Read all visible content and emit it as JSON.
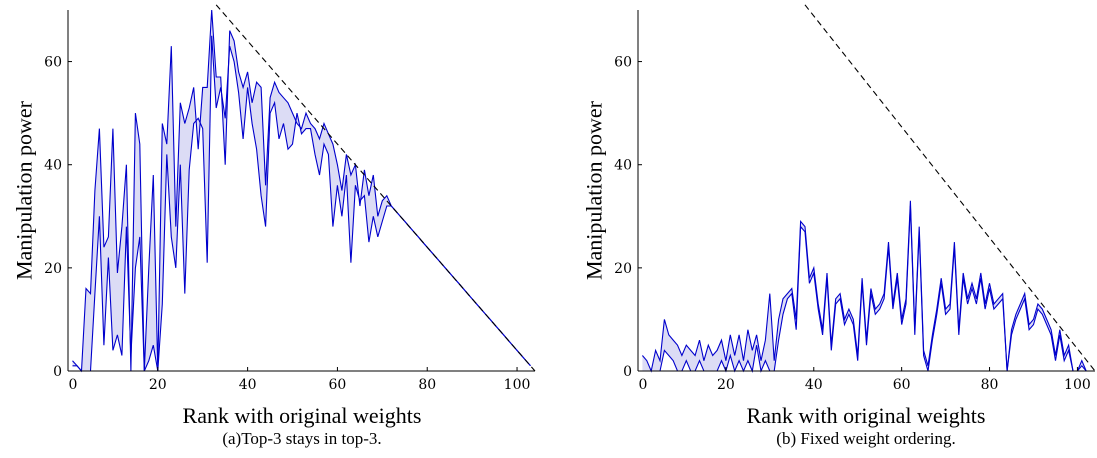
{
  "chart_data": [
    {
      "type": "area",
      "caption": "(a)Top-3 stays in top-3.",
      "xlabel": "Rank with original weights",
      "ylabel": "Manipulation power",
      "xlim": [
        0,
        104
      ],
      "ylim": [
        0,
        70
      ],
      "xticks": [
        0,
        20,
        40,
        60,
        80,
        100
      ],
      "yticks": [
        0,
        20,
        40,
        60
      ],
      "grid": false,
      "colors": {
        "band": "#0000cc",
        "fill": "#dcdcf5",
        "bound": "#000000"
      },
      "x": [
        1,
        2,
        3,
        4,
        5,
        6,
        7,
        8,
        9,
        10,
        11,
        12,
        13,
        14,
        15,
        16,
        17,
        18,
        19,
        20,
        21,
        22,
        23,
        24,
        25,
        26,
        27,
        28,
        29,
        30,
        31,
        32,
        33,
        34,
        35,
        36,
        37,
        38,
        39,
        40,
        41,
        42,
        43,
        44,
        45,
        46,
        47,
        48,
        49,
        50,
        51,
        52,
        53,
        54,
        55,
        56,
        57,
        58,
        59,
        60,
        61,
        62,
        63,
        64,
        65,
        66,
        67,
        68,
        69,
        70,
        71,
        72,
        73,
        74,
        75,
        76,
        77,
        78,
        79,
        80,
        81,
        82,
        83,
        84,
        85,
        86,
        87,
        88,
        89,
        90,
        91,
        92,
        93,
        94,
        95,
        96,
        97,
        98,
        99,
        100,
        101,
        102,
        103
      ],
      "series": [
        {
          "role": "upper",
          "values": [
            2,
            1,
            0,
            16,
            15,
            35,
            47,
            24,
            26,
            47,
            19,
            28,
            40,
            0,
            50,
            44,
            0,
            20,
            38,
            0,
            48,
            44,
            63,
            28,
            52,
            48,
            51,
            55,
            43,
            55,
            55,
            70,
            57,
            57,
            40,
            66,
            64,
            58,
            55,
            58,
            52,
            56,
            55,
            36,
            53,
            56,
            54,
            53,
            52,
            50,
            48,
            47,
            50,
            48,
            47,
            45,
            48,
            46,
            44,
            40,
            35,
            42,
            38,
            40,
            32,
            39,
            34,
            38,
            30,
            33,
            34,
            32,
            31,
            30,
            29,
            28,
            27,
            26,
            25,
            24,
            23,
            22,
            21,
            20,
            19,
            18,
            17,
            16,
            15,
            14,
            13,
            12,
            11,
            10,
            9,
            8,
            7,
            6,
            5,
            4,
            3,
            2,
            1
          ]
        },
        {
          "role": "lower",
          "values": [
            1,
            1,
            0,
            0,
            0,
            15,
            30,
            5,
            22,
            4,
            7,
            3,
            28,
            3,
            20,
            26,
            0,
            2,
            5,
            0,
            13,
            42,
            26,
            20,
            40,
            15,
            39,
            48,
            49,
            47,
            21,
            65,
            51,
            55,
            49,
            63,
            60,
            54,
            45,
            55,
            48,
            43,
            34,
            28,
            50,
            52,
            45,
            48,
            43,
            44,
            50,
            46,
            47,
            47,
            42,
            38,
            44,
            42,
            28,
            36,
            30,
            38,
            21,
            36,
            33,
            34,
            25,
            30,
            26,
            29,
            32,
            32,
            31,
            30,
            29,
            28,
            27,
            26,
            25,
            24,
            23,
            22,
            21,
            20,
            19,
            18,
            17,
            16,
            15,
            14,
            13,
            12,
            11,
            10,
            9,
            8,
            7,
            6,
            5,
            4,
            3,
            2,
            1
          ]
        },
        {
          "role": "bound",
          "x": [
            33,
            104
          ],
          "values": [
            71,
            0
          ]
        }
      ]
    },
    {
      "type": "area",
      "caption": "(b) Fixed weight ordering.",
      "xlabel": "Rank with original weights",
      "ylabel": "Manipulation power",
      "xlim": [
        0,
        104
      ],
      "ylim": [
        0,
        70
      ],
      "xticks": [
        0,
        20,
        40,
        60,
        80,
        100
      ],
      "yticks": [
        0,
        20,
        40,
        60
      ],
      "grid": false,
      "colors": {
        "band": "#0000cc",
        "fill": "#dcdcf5",
        "bound": "#000000"
      },
      "x": [
        1,
        2,
        3,
        4,
        5,
        6,
        7,
        8,
        9,
        10,
        11,
        12,
        13,
        14,
        15,
        16,
        17,
        18,
        19,
        20,
        21,
        22,
        23,
        24,
        25,
        26,
        27,
        28,
        29,
        30,
        31,
        32,
        33,
        34,
        35,
        36,
        37,
        38,
        39,
        40,
        41,
        42,
        43,
        44,
        45,
        46,
        47,
        48,
        49,
        50,
        51,
        52,
        53,
        54,
        55,
        56,
        57,
        58,
        59,
        60,
        61,
        62,
        63,
        64,
        65,
        66,
        67,
        68,
        69,
        70,
        71,
        72,
        73,
        74,
        75,
        76,
        77,
        78,
        79,
        80,
        81,
        82,
        83,
        84,
        85,
        86,
        87,
        88,
        89,
        90,
        91,
        92,
        93,
        94,
        95,
        96,
        97,
        98,
        99,
        100,
        101,
        102,
        103
      ],
      "series": [
        {
          "role": "upper",
          "values": [
            3,
            2,
            0,
            4,
            2,
            10,
            7,
            6,
            5,
            3,
            5,
            4,
            3,
            6,
            2,
            5,
            3,
            4,
            6,
            2,
            7,
            3,
            7,
            2,
            8,
            4,
            7,
            2,
            6,
            15,
            2,
            10,
            14,
            15,
            16,
            10,
            29,
            28,
            18,
            20,
            13,
            8,
            19,
            5,
            14,
            15,
            10,
            12,
            10,
            3,
            18,
            6,
            16,
            12,
            13,
            15,
            25,
            13,
            19,
            10,
            14,
            33,
            8,
            28,
            4,
            1,
            7,
            12,
            18,
            12,
            13,
            25,
            8,
            19,
            14,
            17,
            14,
            19,
            13,
            17,
            13,
            14,
            15,
            0,
            8,
            11,
            13,
            15,
            9,
            10,
            13,
            12,
            10,
            8,
            3,
            8,
            3,
            5,
            0,
            0,
            2,
            0,
            0
          ]
        },
        {
          "role": "lower",
          "values": [
            0,
            0,
            0,
            0,
            0,
            4,
            3,
            2,
            0,
            0,
            2,
            0,
            0,
            2,
            0,
            0,
            0,
            0,
            2,
            0,
            3,
            0,
            2,
            0,
            2,
            0,
            5,
            0,
            2,
            0,
            0,
            6,
            11,
            14,
            15,
            8,
            28,
            27,
            17,
            19,
            12,
            7,
            18,
            4,
            13,
            14,
            9,
            11,
            9,
            2,
            17,
            5,
            15,
            11,
            12,
            14,
            24,
            12,
            18,
            9,
            13,
            32,
            7,
            27,
            3,
            0,
            6,
            11,
            17,
            11,
            12,
            24,
            7,
            18,
            13,
            16,
            13,
            18,
            12,
            16,
            12,
            13,
            14,
            0,
            7,
            10,
            12,
            14,
            8,
            9,
            12,
            11,
            9,
            7,
            2,
            7,
            2,
            4,
            0,
            0,
            1,
            0,
            0
          ]
        },
        {
          "role": "bound",
          "x": [
            38,
            104
          ],
          "values": [
            71,
            0
          ]
        }
      ]
    }
  ]
}
